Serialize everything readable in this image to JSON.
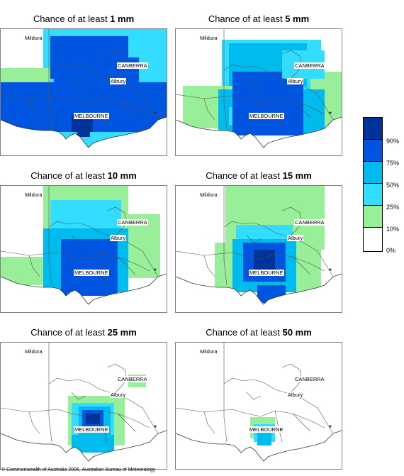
{
  "panels": [
    {
      "title_prefix": "Chance of at least ",
      "title_amount": "1 mm"
    },
    {
      "title_prefix": "Chance of at least ",
      "title_amount": "5 mm"
    },
    {
      "title_prefix": "Chance of at least ",
      "title_amount": "10 mm"
    },
    {
      "title_prefix": "Chance of at least ",
      "title_amount": "15 mm"
    },
    {
      "title_prefix": "Chance of at least ",
      "title_amount": "25 mm"
    },
    {
      "title_prefix": "Chance of at least ",
      "title_amount": "50 mm"
    }
  ],
  "places": {
    "mildura": "Mildura",
    "canberra": "CANBERRA",
    "albury": "Albury",
    "melbourne": "MELBOURNE"
  },
  "legend": {
    "ticks": [
      "90%",
      "75%",
      "50%",
      "25%",
      "10%",
      "0%"
    ],
    "colors": [
      "#003399",
      "#0055e0",
      "#00bbee",
      "#33ddff",
      "#99ee99",
      "#ffffff"
    ]
  },
  "credit": "© Commonwealth of Australia 2006, Australian Bureau of Meteorology"
}
